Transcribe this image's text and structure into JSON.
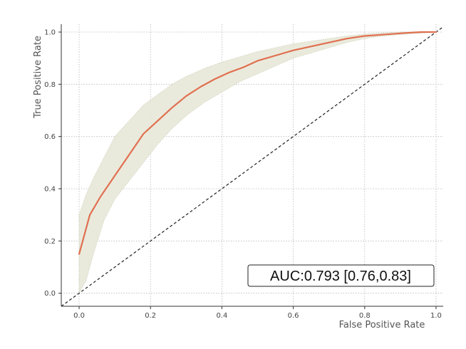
{
  "chart_data": {
    "type": "line",
    "title": "",
    "xlabel": "False Positive Rate",
    "ylabel": "True Positive Rate",
    "xlim": [
      -0.05,
      1.02
    ],
    "ylim": [
      -0.05,
      1.03
    ],
    "x_ticks": [
      0.0,
      0.2,
      0.4,
      0.6,
      0.8,
      1.0
    ],
    "y_ticks": [
      0.0,
      0.2,
      0.4,
      0.6,
      0.8,
      1.0
    ],
    "x_tick_labels": [
      "0.0",
      "0.2",
      "0.4",
      "0.6",
      "0.8",
      "1.0"
    ],
    "y_tick_labels": [
      "0.0",
      "0.2",
      "0.4",
      "0.6",
      "0.8",
      "1.0"
    ],
    "grid": true,
    "series": [
      {
        "kind": "mean_roc",
        "color": "#e07050",
        "x": [
          0.0,
          0.03,
          0.06,
          0.1,
          0.14,
          0.18,
          0.22,
          0.26,
          0.3,
          0.34,
          0.38,
          0.42,
          0.46,
          0.5,
          0.55,
          0.6,
          0.65,
          0.7,
          0.75,
          0.8,
          0.85,
          0.9,
          0.93,
          0.96,
          1.0
        ],
        "y": [
          0.15,
          0.3,
          0.37,
          0.45,
          0.53,
          0.61,
          0.66,
          0.71,
          0.755,
          0.79,
          0.82,
          0.845,
          0.865,
          0.89,
          0.91,
          0.93,
          0.945,
          0.96,
          0.975,
          0.985,
          0.99,
          0.995,
          0.998,
          1.0,
          1.0
        ]
      },
      {
        "kind": "confidence_band",
        "color": "#e8e8d8",
        "x": [
          0.0,
          0.02,
          0.04,
          0.07,
          0.1,
          0.14,
          0.18,
          0.22,
          0.26,
          0.3,
          0.35,
          0.4,
          0.45,
          0.5,
          0.55,
          0.6,
          0.65,
          0.7,
          0.75,
          0.8,
          0.85,
          0.9,
          0.95,
          1.0
        ],
        "lower": [
          0.0,
          0.05,
          0.15,
          0.28,
          0.36,
          0.43,
          0.5,
          0.57,
          0.63,
          0.68,
          0.73,
          0.77,
          0.81,
          0.84,
          0.87,
          0.9,
          0.92,
          0.94,
          0.96,
          0.975,
          0.985,
          0.99,
          0.995,
          1.0
        ],
        "upper": [
          0.3,
          0.38,
          0.44,
          0.52,
          0.6,
          0.66,
          0.72,
          0.76,
          0.8,
          0.83,
          0.86,
          0.885,
          0.905,
          0.925,
          0.94,
          0.955,
          0.965,
          0.975,
          0.985,
          0.993,
          0.997,
          1.0,
          1.0,
          1.0
        ]
      },
      {
        "kind": "chance_line",
        "color": "#222222",
        "x": [
          -0.05,
          1.02
        ],
        "y": [
          -0.05,
          1.02
        ]
      }
    ],
    "annotation": "AUC:0.793 [0.76,0.83]"
  }
}
